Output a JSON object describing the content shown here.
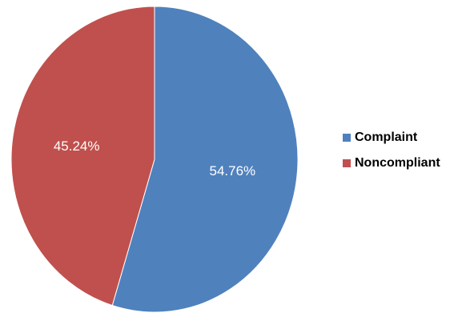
{
  "chart_data": {
    "type": "pie",
    "slices": [
      {
        "name": "Complaint",
        "value": 54.76,
        "label": "54.76%",
        "color": "#4f81bd"
      },
      {
        "name": "Noncompliant",
        "value": 45.24,
        "label": "45.24%",
        "color": "#c0504d"
      }
    ],
    "start_angle": "12 o'clock",
    "direction": "clockwise",
    "legend_position": "right"
  }
}
